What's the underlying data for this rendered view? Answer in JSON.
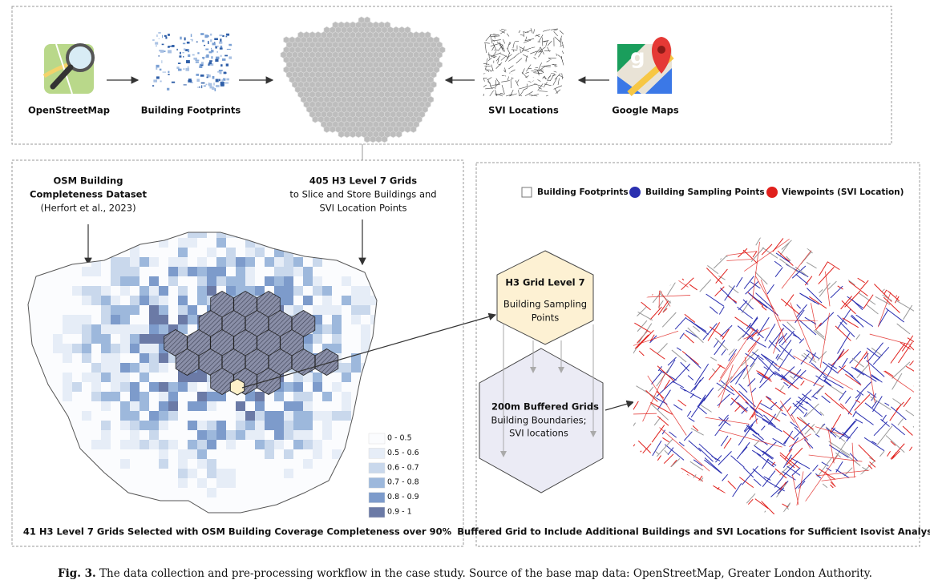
{
  "top_panel": {
    "nodes": [
      {
        "label": "OpenStreetMap"
      },
      {
        "label": "Building Footprints"
      },
      {
        "label": "SVI Locations"
      },
      {
        "label": "Google Maps"
      }
    ]
  },
  "left_panel": {
    "source_label": [
      "OSM Building",
      "Completeness Dataset",
      "(Herfort et al., 2023)"
    ],
    "grids_label": [
      "405 H3 Level 7  Grids",
      "to Slice and Store Buildings and",
      "SVI Location Points"
    ],
    "legend": [
      "0 - 0.5",
      "0.5 - 0.6",
      "0.6 - 0.7",
      "0.7 - 0.8",
      "0.8 - 0.9",
      "0.9 - 1"
    ],
    "caption": "41 H3 Level 7 Grids Selected with OSM Building Coverage Completeness over 90%"
  },
  "right_panel": {
    "legend": [
      "Building Footprints",
      "Building Sampling Points",
      "Viewpoints (SVI Location)"
    ],
    "grid_hex": [
      "H3 Grid Level 7",
      "Building Sampling",
      "Points"
    ],
    "buffer_hex": [
      "200m Buffered Grids",
      "Building Boundaries;",
      "SVI locations"
    ],
    "caption": "Buffered Grid to Include Additional Buildings and SVI Locations for Sufficient Isovist Analysis"
  },
  "figure_caption": {
    "label": "Fig. 3.",
    "text": "The data collection and pre-processing workflow in the case study. Source of the base map data: OpenStreetMap, Greater London Authority."
  }
}
